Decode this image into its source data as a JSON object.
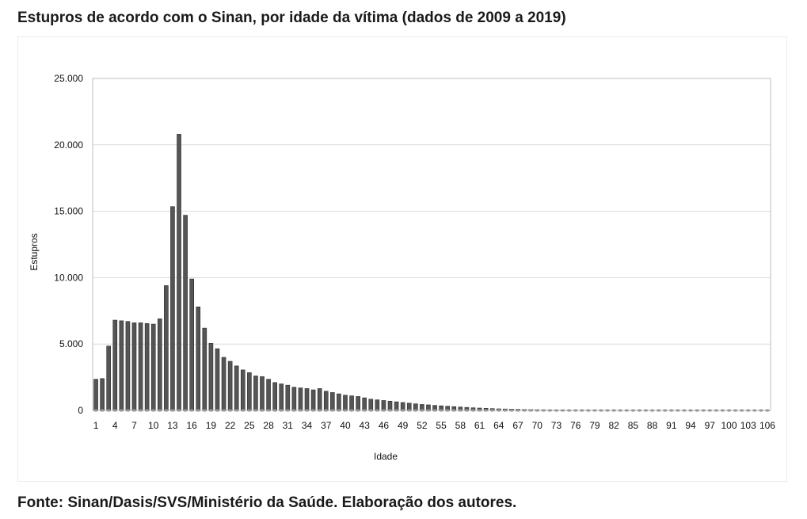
{
  "title": "Estupros de acordo com o Sinan, por idade da vítima (dados de 2009 a 2019)",
  "source": "Fonte: Sinan/Dasis/SVS/Ministério da Saúde. Elaboração dos autores.",
  "chart_data": {
    "type": "bar",
    "title": "Estupros de acordo com o Sinan, por idade da vítima (dados de 2009 a 2019)",
    "xlabel": "Idade",
    "ylabel": "Estupros",
    "ylim": [
      0,
      25000
    ],
    "yticks": [
      {
        "value": 0,
        "label": "0"
      },
      {
        "value": 5000,
        "label": "5.000"
      },
      {
        "value": 10000,
        "label": "10.000"
      },
      {
        "value": 15000,
        "label": "15.000"
      },
      {
        "value": 20000,
        "label": "20.000"
      },
      {
        "value": 25000,
        "label": "25.000"
      }
    ],
    "xtick_labels": [
      "1",
      "4",
      "7",
      "10",
      "13",
      "16",
      "19",
      "22",
      "25",
      "28",
      "31",
      "34",
      "37",
      "40",
      "43",
      "46",
      "49",
      "52",
      "55",
      "58",
      "61",
      "64",
      "67",
      "70",
      "73",
      "76",
      "79",
      "82",
      "85",
      "88",
      "91",
      "94",
      "97",
      "100",
      "103",
      "106"
    ],
    "grid": true,
    "bar_color": "#555555",
    "categories": [
      1,
      2,
      3,
      4,
      5,
      6,
      7,
      8,
      9,
      10,
      11,
      12,
      13,
      14,
      15,
      16,
      17,
      18,
      19,
      20,
      21,
      22,
      23,
      24,
      25,
      26,
      27,
      28,
      29,
      30,
      31,
      32,
      33,
      34,
      35,
      36,
      37,
      38,
      39,
      40,
      41,
      42,
      43,
      44,
      45,
      46,
      47,
      48,
      49,
      50,
      51,
      52,
      53,
      54,
      55,
      56,
      57,
      58,
      59,
      60,
      61,
      62,
      63,
      64,
      65,
      66,
      67,
      68,
      69,
      70,
      71,
      72,
      73,
      74,
      75,
      76,
      77,
      78,
      79,
      80,
      81,
      82,
      83,
      84,
      85,
      86,
      87,
      88,
      89,
      90,
      91,
      92,
      93,
      94,
      95,
      96,
      97,
      98,
      99,
      100,
      101,
      102,
      103,
      104,
      105,
      106
    ],
    "values": [
      2350,
      2400,
      4850,
      6800,
      6750,
      6700,
      6600,
      6600,
      6550,
      6500,
      6900,
      9400,
      15350,
      20800,
      14700,
      9900,
      7800,
      6200,
      5050,
      4650,
      4000,
      3700,
      3350,
      3050,
      2850,
      2600,
      2550,
      2350,
      2100,
      2000,
      1900,
      1750,
      1700,
      1650,
      1550,
      1650,
      1450,
      1350,
      1250,
      1150,
      1100,
      1050,
      950,
      850,
      800,
      750,
      700,
      650,
      600,
      550,
      500,
      450,
      420,
      380,
      350,
      320,
      290,
      260,
      230,
      200,
      180,
      160,
      140,
      120,
      110,
      100,
      90,
      80,
      70,
      60,
      50,
      45,
      40,
      35,
      30,
      28,
      25,
      22,
      20,
      18,
      15,
      14,
      13,
      12,
      11,
      10,
      9,
      8,
      7,
      6,
      5,
      5,
      4,
      4,
      3,
      3,
      3,
      2,
      2,
      2,
      2,
      1,
      1,
      1,
      1,
      1
    ]
  }
}
